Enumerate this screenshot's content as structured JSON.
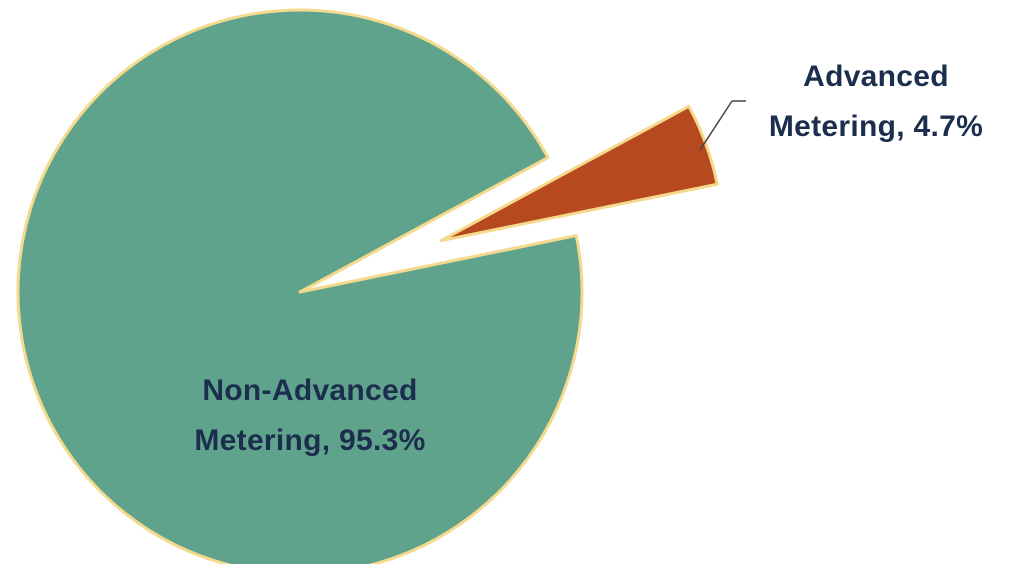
{
  "chart_data": {
    "type": "pie",
    "title": "",
    "slices": [
      {
        "label_line1": "Non-Advanced",
        "label_line2": "Metering, 95.3%",
        "value": 95.3,
        "color": "#60A38C"
      },
      {
        "label_line1": "Advanced",
        "label_line2": "Metering, 4.7%",
        "value": 4.7,
        "color": "#B74920"
      }
    ],
    "slice_border_color": "#F5D98C",
    "label_color": "#1C2E4D",
    "exploded_slice": "Advanced"
  }
}
